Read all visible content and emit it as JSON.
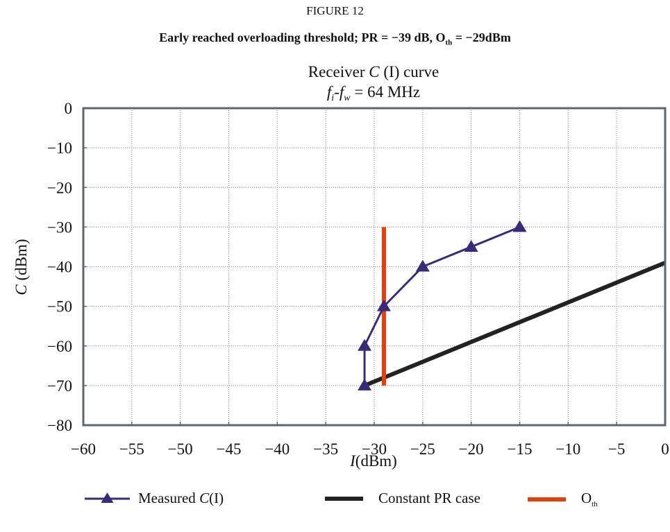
{
  "figure": {
    "label": "FIGURE 12",
    "heading_pre": "Early reached overloading threshold; PR = −39 dB, O",
    "heading_sub": "th",
    "heading_post": " = −29dBm"
  },
  "chart_data": {
    "type": "line",
    "title_line1_pre": "Receiver ",
    "title_line1_var": "C",
    "title_line1_post": " (I) curve",
    "title_line2_f1": "f",
    "title_line2_s1": "i",
    "title_line2_dash": "-",
    "title_line2_f2": "f",
    "title_line2_s2": "w",
    "title_line2_post": " = 64 MHz",
    "xlabel_var": "I",
    "xlabel_unit": "(dBm)",
    "ylabel_var": "C",
    "ylabel_unit": " (dBm)",
    "xlim": [
      -60,
      0
    ],
    "ylim": [
      -80,
      0
    ],
    "x_ticks": [
      -60,
      -55,
      -50,
      -45,
      -40,
      -35,
      -30,
      -25,
      -20,
      -15,
      -10,
      -5,
      0
    ],
    "y_ticks": [
      0,
      -10,
      -20,
      -30,
      -40,
      -50,
      -60,
      -70,
      -80
    ],
    "grid": true,
    "legend_position": "bottom",
    "series": [
      {
        "name": "Measured C(I)",
        "legend_text": "Measured ",
        "legend_var": "C",
        "legend_post": "(I)",
        "color": "#3a2a7a",
        "marker": "triangle",
        "x": [
          -31,
          -31,
          -29,
          -25,
          -20,
          -15
        ],
        "y": [
          -70,
          -60,
          -50,
          -40,
          -35,
          -30
        ]
      },
      {
        "name": "Constant PR case",
        "legend_text": "Constant PR case",
        "color": "#222222",
        "marker": "none",
        "x": [
          -31,
          0
        ],
        "y": [
          -70,
          -39
        ]
      },
      {
        "name": "Oth",
        "legend_text": "O",
        "legend_sub": "th",
        "color": "#e0420f",
        "marker": "none",
        "x": [
          -29,
          -29
        ],
        "y": [
          -70,
          -30
        ]
      }
    ]
  }
}
